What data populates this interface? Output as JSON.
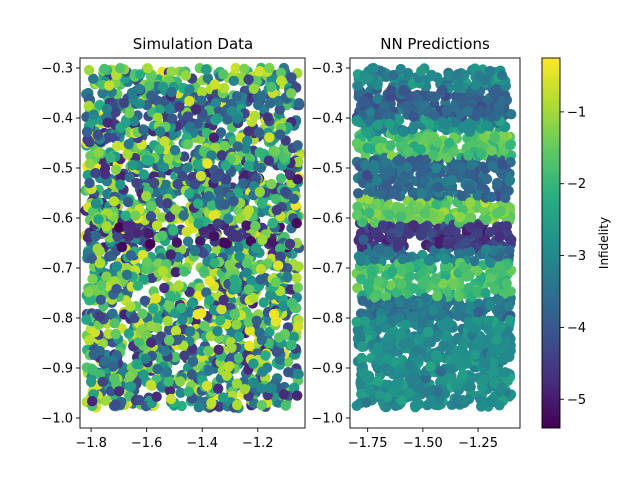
{
  "chart_data": [
    {
      "type": "scatter",
      "title": "Simulation Data",
      "xlabel": "",
      "ylabel": "",
      "xlim": [
        -1.84,
        -1.03
      ],
      "ylim": [
        -1.02,
        -0.28
      ],
      "xticks": [
        -1.8,
        -1.6,
        -1.4,
        -1.2
      ],
      "xtick_labels": [
        "−1.8",
        "−1.6",
        "−1.4",
        "−1.2"
      ],
      "yticks": [
        -1.0,
        -0.9,
        -0.8,
        -0.7,
        -0.6,
        -0.5,
        -0.4,
        -0.3
      ],
      "ytick_labels": [
        "−1.0",
        "−0.9",
        "−0.8",
        "−0.7",
        "−0.6",
        "−0.5",
        "−0.4",
        "−0.3"
      ],
      "point_x_range": [
        -1.82,
        -1.05
      ],
      "point_y_range": [
        -0.98,
        -0.3
      ],
      "color_mode": "random",
      "approx_points": 2200,
      "bands": [
        {
          "y_min": -0.3,
          "y_max": -0.34,
          "infidelity": -1.2
        },
        {
          "y_min": -0.34,
          "y_max": -0.4,
          "infidelity": -3.8
        },
        {
          "y_min": -0.45,
          "y_max": -0.48,
          "infidelity": -1.5
        },
        {
          "y_min": -0.5,
          "y_max": -0.53,
          "infidelity": -4.6
        },
        {
          "y_min": -0.58,
          "y_max": -0.61,
          "infidelity": -1.2
        },
        {
          "y_min": -0.61,
          "y_max": -0.66,
          "infidelity": -4.8
        },
        {
          "y_min": -0.69,
          "y_max": -0.74,
          "infidelity": -1.3
        },
        {
          "y_min": -0.81,
          "y_max": -0.84,
          "infidelity": -1.0
        }
      ]
    },
    {
      "type": "scatter",
      "title": "NN Predictions",
      "xlabel": "",
      "ylabel": "",
      "xlim": [
        -1.83,
        -1.06
      ],
      "ylim": [
        -1.02,
        -0.28
      ],
      "xticks": [
        -1.75,
        -1.5,
        -1.25
      ],
      "xtick_labels": [
        "−1.75",
        "−1.50",
        "−1.25"
      ],
      "yticks": [
        -1.0,
        -0.9,
        -0.8,
        -0.7,
        -0.6,
        -0.5,
        -0.4,
        -0.3
      ],
      "ytick_labels": [
        "−1.0",
        "−0.9",
        "−0.8",
        "−0.7",
        "−0.6",
        "−0.5",
        "−0.4",
        "−0.3"
      ],
      "point_x_range": [
        -1.8,
        -1.1
      ],
      "point_y_range": [
        -0.98,
        -0.3
      ],
      "color_mode": "bands",
      "approx_points": 2200,
      "bands": [
        {
          "y_min": -0.3,
          "y_max": -0.34,
          "infidelity": -3.0
        },
        {
          "y_min": -0.34,
          "y_max": -0.4,
          "infidelity": -3.8
        },
        {
          "y_min": -0.4,
          "y_max": -0.43,
          "infidelity": -2.9
        },
        {
          "y_min": -0.43,
          "y_max": -0.48,
          "infidelity": -1.7
        },
        {
          "y_min": -0.48,
          "y_max": -0.56,
          "infidelity": -3.6
        },
        {
          "y_min": -0.56,
          "y_max": -0.61,
          "infidelity": -1.4
        },
        {
          "y_min": -0.61,
          "y_max": -0.66,
          "infidelity": -4.5
        },
        {
          "y_min": -0.66,
          "y_max": -0.69,
          "infidelity": -3.2
        },
        {
          "y_min": -0.69,
          "y_max": -0.76,
          "infidelity": -1.8
        },
        {
          "y_min": -0.76,
          "y_max": -0.8,
          "infidelity": -3.4
        },
        {
          "y_min": -0.8,
          "y_max": -0.98,
          "infidelity": -2.9
        }
      ]
    }
  ],
  "colorbar": {
    "label": "Infidelity",
    "range": [
      -5.4,
      -0.25
    ],
    "ticks": [
      -5,
      -4,
      -3,
      -2,
      -1
    ],
    "tick_labels": [
      "−5",
      "−4",
      "−3",
      "−2",
      "−1"
    ],
    "colormap": "viridis"
  }
}
